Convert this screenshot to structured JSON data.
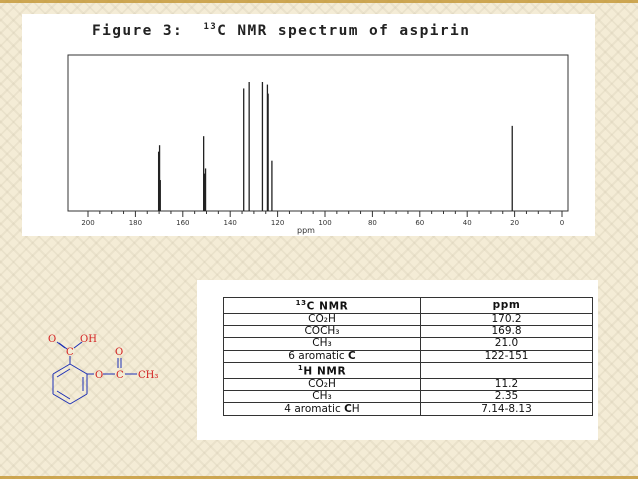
{
  "slide": {
    "background": "#f4ecd6",
    "accent": "#c59a3b"
  },
  "figure": {
    "title_prefix": "Figure 3:",
    "title_sup": "13",
    "title_main": "C NMR spectrum of aspirin"
  },
  "chart_data": {
    "type": "line",
    "title": "Figure 3: 13C NMR spectrum of aspirin",
    "xlabel": "ppm",
    "ylabel": "",
    "xlim": [
      200,
      0
    ],
    "x_reversed": true,
    "ylim": [
      0,
      1
    ],
    "x_ticks": [
      "200",
      "180",
      "160",
      "140",
      "120",
      "100",
      "80",
      "60",
      "40",
      "20",
      "0"
    ],
    "grid": false,
    "peaks": [
      {
        "ppm": 170.2,
        "intensity": 0.46
      },
      {
        "ppm": 169.8,
        "intensity": 0.51
      },
      {
        "ppm": 169.5,
        "intensity": 0.24
      },
      {
        "ppm": 151.2,
        "intensity": 0.58
      },
      {
        "ppm": 150.8,
        "intensity": 0.29
      },
      {
        "ppm": 150.4,
        "intensity": 0.33
      },
      {
        "ppm": 134.3,
        "intensity": 0.95
      },
      {
        "ppm": 132.0,
        "intensity": 1.0
      },
      {
        "ppm": 126.4,
        "intensity": 1.0
      },
      {
        "ppm": 124.3,
        "intensity": 0.98
      },
      {
        "ppm": 124.0,
        "intensity": 0.91
      },
      {
        "ppm": 122.4,
        "intensity": 0.39
      },
      {
        "ppm": 21.0,
        "intensity": 0.66
      }
    ],
    "color": "#222222"
  },
  "structure": {
    "label_o_top": "O",
    "label_oh": "OH",
    "label_c_acid": "C",
    "label_o_carbonyl": "O",
    "label_o_ester": "O",
    "label_c_ester": "C",
    "label_ch3": "CH₃",
    "label_color": "#d31f1f",
    "bond_color": "#1c2fb5"
  },
  "table": {
    "header_c_sup": "13",
    "header_c": "C  NMR",
    "header_ppm": "ppm",
    "rows_c": [
      {
        "label": "CO₂H",
        "value": "170.2"
      },
      {
        "label": "COCH₃",
        "value": "169.8"
      },
      {
        "label": "CH₃",
        "value": "21.0"
      },
      {
        "label_prefix": "6 aromatic ",
        "label_bold": "C",
        "value": "122-151"
      }
    ],
    "header_h_sup": "1",
    "header_h": "H  NMR",
    "rows_h": [
      {
        "label": "CO₂H",
        "value": "11.2"
      },
      {
        "label": "CH₃",
        "value": "2.35"
      },
      {
        "label_prefix": "4 aromatic ",
        "label_bold": "C",
        "label_suffix": "H",
        "value": "7.14-8.13"
      }
    ]
  }
}
